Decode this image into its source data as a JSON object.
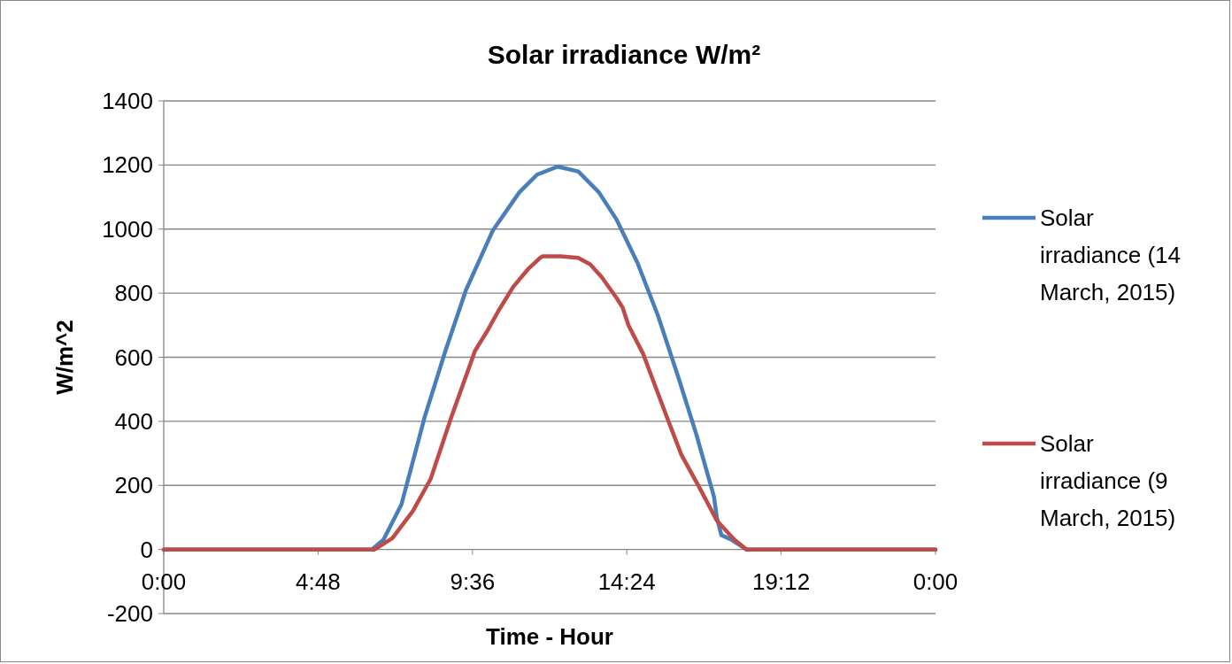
{
  "chart_data": {
    "type": "line",
    "title": "Solar irradiance W/m²",
    "xlabel": "Time - Hour",
    "ylabel": "W/m^2",
    "xlim": [
      0,
      24
    ],
    "xticks": [
      {
        "value": 0,
        "label": "0:00"
      },
      {
        "value": 4.8,
        "label": "4:48"
      },
      {
        "value": 9.6,
        "label": "9:36"
      },
      {
        "value": 14.4,
        "label": "14:24"
      },
      {
        "value": 19.2,
        "label": "19:12"
      },
      {
        "value": 24,
        "label": "0:00"
      }
    ],
    "ylim": [
      -200,
      1400
    ],
    "yticks": [
      -200,
      0,
      200,
      400,
      600,
      800,
      1000,
      1200,
      1400
    ],
    "grid": "y",
    "legend": "right",
    "marker": "none",
    "line_style": "solid",
    "series": [
      {
        "name": "Solar irradiance (14 March, 2015)",
        "color": "#4a7ebb",
        "x": [
          0,
          6.47,
          6.83,
          7.39,
          8.12,
          8.76,
          9.4,
          10.23,
          11.06,
          11.61,
          12.25,
          12.89,
          13.53,
          14.08,
          14.73,
          15.37,
          16.01,
          16.56,
          17.11,
          17.2,
          17.34,
          17.66,
          18.12,
          24
        ],
        "values": [
          0,
          0,
          30,
          140,
          415,
          620,
          810,
          995,
          1115,
          1170,
          1195,
          1180,
          1115,
          1030,
          895,
          730,
          535,
          360,
          165,
          100,
          45,
          30,
          0,
          0
        ]
      },
      {
        "name": "Solar irradiance (9 March, 2015)",
        "color": "#be4b48",
        "x": [
          0,
          6.56,
          7.11,
          7.75,
          8.3,
          8.95,
          9.68,
          10.05,
          10.41,
          10.87,
          11.33,
          11.7,
          11.79,
          12.34,
          12.89,
          13.26,
          13.62,
          14.08,
          14.27,
          14.45,
          14.91,
          15.19,
          15.64,
          16.1,
          16.65,
          17.2,
          17.75,
          18.12,
          24
        ],
        "values": [
          0,
          0,
          35,
          120,
          220,
          415,
          620,
          680,
          745,
          820,
          875,
          910,
          915,
          915,
          910,
          890,
          850,
          785,
          755,
          700,
          610,
          535,
          415,
          295,
          195,
          90,
          30,
          0,
          0
        ]
      }
    ]
  }
}
